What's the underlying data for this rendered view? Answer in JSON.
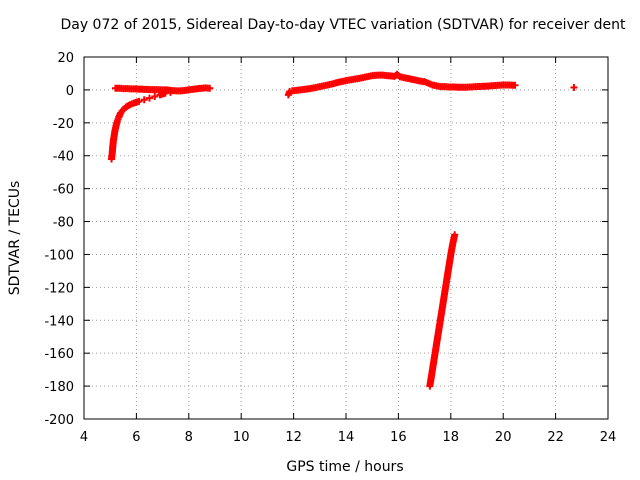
{
  "chart_data": {
    "type": "scatter",
    "title": "Day 072 of 2015, Sidereal Day-to-day VTEC variation (SDTVAR) for receiver dent",
    "xlabel": "GPS time / hours",
    "ylabel": "SDTVAR / TECUs",
    "xlim": [
      4,
      24
    ],
    "ylim": [
      -200,
      20
    ],
    "xticks": [
      4,
      6,
      8,
      10,
      12,
      14,
      16,
      18,
      20,
      22,
      24
    ],
    "yticks": [
      20,
      0,
      -20,
      -40,
      -60,
      -80,
      -100,
      -120,
      -140,
      -160,
      -180,
      -200
    ],
    "grid": true,
    "legend": "none",
    "marker": "plus",
    "color": "#ff0000",
    "series": [
      {
        "points": [
          [
            5.05,
            -42
          ],
          [
            5.08,
            -38
          ],
          [
            5.1,
            -34
          ],
          [
            5.12,
            -31
          ],
          [
            5.15,
            -28
          ],
          [
            5.18,
            -25
          ],
          [
            5.22,
            -22
          ],
          [
            5.27,
            -19
          ],
          [
            5.33,
            -16.5
          ],
          [
            5.4,
            -14
          ],
          [
            5.5,
            -12
          ],
          [
            5.6,
            -10.5
          ],
          [
            5.75,
            -9
          ],
          [
            5.9,
            -8
          ],
          [
            6.1,
            -7
          ],
          [
            6.3,
            -6
          ],
          [
            6.5,
            -5
          ],
          [
            6.7,
            -4
          ],
          [
            6.9,
            -3
          ],
          [
            7.1,
            -2
          ],
          [
            7.3,
            -1.5
          ],
          [
            5.2,
            1
          ],
          [
            5.35,
            1
          ],
          [
            5.5,
            0.8
          ],
          [
            5.65,
            0.8
          ],
          [
            5.8,
            0.6
          ],
          [
            5.95,
            0.6
          ],
          [
            6.1,
            0.5
          ],
          [
            6.25,
            0.4
          ],
          [
            6.4,
            0.3
          ],
          [
            6.55,
            0.2
          ],
          [
            6.7,
            0.2
          ],
          [
            6.85,
            0.1
          ],
          [
            7.0,
            0
          ],
          [
            7.15,
            0
          ],
          [
            7.3,
            -0.3
          ],
          [
            7.45,
            -0.5
          ],
          [
            7.6,
            -0.6
          ],
          [
            7.75,
            -0.5
          ],
          [
            7.9,
            -0.2
          ],
          [
            8.05,
            0.2
          ],
          [
            8.2,
            0.5
          ],
          [
            8.35,
            0.8
          ],
          [
            8.5,
            1.0
          ],
          [
            8.65,
            1.2
          ],
          [
            8.8,
            1.0
          ],
          [
            11.8,
            -3
          ],
          [
            11.85,
            -1
          ],
          [
            11.95,
            -0.5
          ],
          [
            12.1,
            -0.3
          ],
          [
            12.25,
            0
          ],
          [
            12.4,
            0.3
          ],
          [
            12.55,
            0.6
          ],
          [
            12.7,
            1.0
          ],
          [
            12.85,
            1.5
          ],
          [
            13.0,
            2.0
          ],
          [
            13.15,
            2.5
          ],
          [
            13.3,
            3.0
          ],
          [
            13.45,
            3.5
          ],
          [
            13.6,
            4.2
          ],
          [
            13.75,
            4.8
          ],
          [
            13.9,
            5.3
          ],
          [
            14.05,
            5.8
          ],
          [
            14.2,
            6.2
          ],
          [
            14.35,
            6.6
          ],
          [
            14.5,
            7.0
          ],
          [
            14.65,
            7.5
          ],
          [
            14.8,
            8.0
          ],
          [
            14.95,
            8.5
          ],
          [
            15.1,
            8.8
          ],
          [
            15.25,
            9.0
          ],
          [
            15.4,
            9.0
          ],
          [
            15.55,
            8.7
          ],
          [
            15.7,
            8.5
          ],
          [
            15.85,
            8.2
          ],
          [
            15.95,
            9.5
          ],
          [
            16.05,
            8.0
          ],
          [
            16.2,
            7.5
          ],
          [
            16.35,
            7.0
          ],
          [
            16.5,
            6.5
          ],
          [
            16.65,
            6.0
          ],
          [
            16.8,
            5.5
          ],
          [
            16.95,
            5.0
          ],
          [
            17.0,
            5
          ],
          [
            17.15,
            4
          ],
          [
            17.3,
            3
          ],
          [
            17.45,
            2.5
          ],
          [
            17.6,
            2
          ],
          [
            17.75,
            2
          ],
          [
            17.9,
            1.8
          ],
          [
            18.05,
            1.8
          ],
          [
            18.2,
            1.7
          ],
          [
            18.35,
            1.6
          ],
          [
            18.5,
            1.6
          ],
          [
            18.65,
            1.7
          ],
          [
            18.8,
            1.8
          ],
          [
            18.95,
            2.0
          ],
          [
            19.1,
            2.1
          ],
          [
            19.25,
            2.2
          ],
          [
            19.4,
            2.3
          ],
          [
            19.55,
            2.5
          ],
          [
            19.7,
            2.7
          ],
          [
            19.85,
            2.8
          ],
          [
            20.0,
            3.0
          ],
          [
            20.15,
            3.0
          ],
          [
            20.3,
            2.9
          ],
          [
            20.45,
            2.8
          ],
          [
            22.7,
            1.5
          ],
          [
            17.2,
            -180
          ],
          [
            17.28,
            -172
          ],
          [
            17.36,
            -164
          ],
          [
            17.44,
            -156
          ],
          [
            17.52,
            -148
          ],
          [
            17.6,
            -140
          ],
          [
            17.68,
            -132
          ],
          [
            17.76,
            -124
          ],
          [
            17.84,
            -116
          ],
          [
            17.92,
            -108
          ],
          [
            18.0,
            -100
          ],
          [
            18.08,
            -93
          ],
          [
            18.15,
            -88
          ]
        ]
      }
    ]
  }
}
